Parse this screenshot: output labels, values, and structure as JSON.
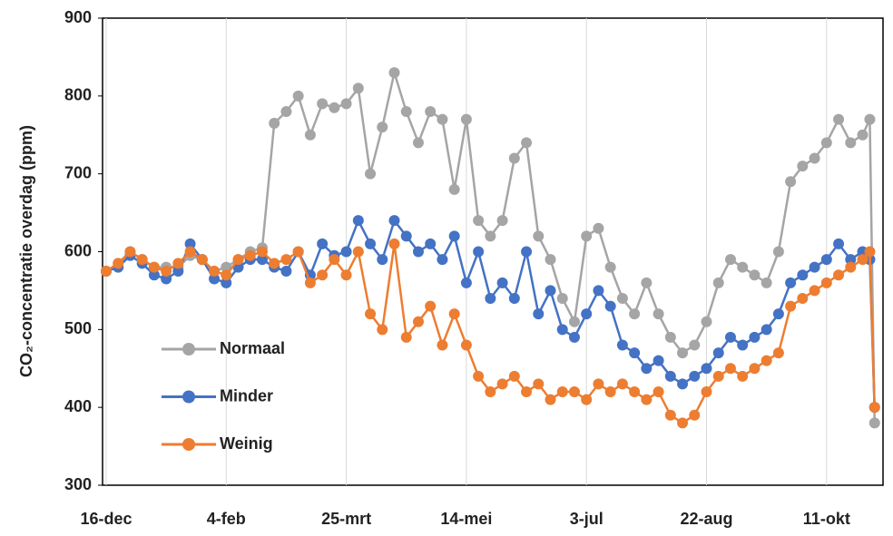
{
  "chart_data": {
    "type": "line",
    "y_label": "CO₂-concentratie overdag (ppm)",
    "x": [
      0,
      5,
      10,
      15,
      20,
      25,
      30,
      35,
      40,
      45,
      50,
      55,
      60,
      65,
      70,
      75,
      80,
      85,
      90,
      95,
      100,
      105,
      110,
      115,
      120,
      125,
      130,
      135,
      140,
      145,
      150,
      155,
      160,
      165,
      170,
      175,
      180,
      185,
      190,
      195,
      200,
      205,
      210,
      215,
      220,
      225,
      230,
      235,
      240,
      245,
      250,
      255,
      260,
      265,
      270,
      275,
      280,
      285,
      290,
      295,
      300,
      305,
      310,
      315,
      318,
      320
    ],
    "xlim": [
      -1.5,
      323.5
    ],
    "xticks": [
      {
        "value": 0,
        "label": "16-dec"
      },
      {
        "value": 50,
        "label": "4-feb"
      },
      {
        "value": 100,
        "label": "25-mrt"
      },
      {
        "value": 150,
        "label": "14-mei"
      },
      {
        "value": 200,
        "label": "3-jul"
      },
      {
        "value": 250,
        "label": "22-aug"
      },
      {
        "value": 300,
        "label": "11-okt"
      }
    ],
    "ylim": [
      300,
      900
    ],
    "yticks": [
      300,
      400,
      500,
      600,
      700,
      800,
      900
    ],
    "grid": "x",
    "legend": "lower left",
    "series": [
      {
        "name": "Normaal",
        "color": "#a5a5a5",
        "values": [
          575,
          580,
          600,
          590,
          580,
          580,
          580,
          595,
          590,
          575,
          580,
          590,
          600,
          605,
          765,
          780,
          800,
          750,
          790,
          785,
          790,
          810,
          700,
          760,
          830,
          780,
          740,
          780,
          770,
          680,
          770,
          640,
          620,
          640,
          720,
          740,
          620,
          590,
          540,
          510,
          620,
          630,
          580,
          540,
          520,
          560,
          520,
          490,
          470,
          480,
          510,
          560,
          590,
          580,
          570,
          560,
          600,
          690,
          710,
          720,
          740,
          770,
          740,
          750,
          770,
          380
        ]
      },
      {
        "name": "Minder",
        "color": "#4472c4",
        "values": [
          575,
          580,
          595,
          585,
          570,
          565,
          575,
          610,
          590,
          565,
          560,
          580,
          590,
          590,
          580,
          575,
          600,
          570,
          610,
          595,
          600,
          640,
          610,
          590,
          640,
          620,
          600,
          610,
          590,
          620,
          560,
          600,
          540,
          560,
          540,
          600,
          520,
          550,
          500,
          490,
          520,
          550,
          530,
          480,
          470,
          450,
          460,
          440,
          430,
          440,
          450,
          470,
          490,
          480,
          490,
          500,
          520,
          560,
          570,
          580,
          590,
          610,
          590,
          600,
          590,
          400
        ]
      },
      {
        "name": "Weinig",
        "color": "#ed7d31",
        "values": [
          575,
          585,
          600,
          590,
          580,
          575,
          585,
          600,
          590,
          575,
          570,
          590,
          595,
          600,
          585,
          590,
          600,
          560,
          570,
          590,
          570,
          600,
          520,
          500,
          610,
          490,
          510,
          530,
          480,
          520,
          480,
          440,
          420,
          430,
          440,
          420,
          430,
          410,
          420,
          420,
          410,
          430,
          420,
          430,
          420,
          410,
          420,
          390,
          380,
          390,
          420,
          440,
          450,
          440,
          450,
          460,
          470,
          530,
          540,
          550,
          560,
          570,
          580,
          590,
          600,
          400
        ]
      }
    ]
  }
}
